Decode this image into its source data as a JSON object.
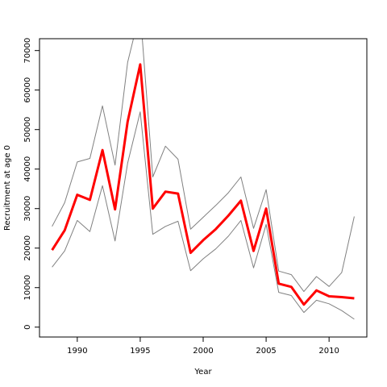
{
  "chart_data": {
    "type": "line",
    "title": "",
    "xlabel": "Year",
    "ylabel": "Recruitment at age 0",
    "xlim": [
      1987,
      2013
    ],
    "ylim": [
      -2500,
      73000
    ],
    "xticks": [
      1990,
      1995,
      2000,
      2005,
      2010
    ],
    "yticks": [
      0,
      10000,
      20000,
      30000,
      40000,
      50000,
      60000,
      70000
    ],
    "grid": false,
    "legend": "none",
    "x": [
      1988,
      1989,
      1990,
      1991,
      1992,
      1993,
      1994,
      1995,
      1996,
      1997,
      1998,
      1999,
      2000,
      2001,
      2002,
      2003,
      2004,
      2005,
      2006,
      2007,
      2008,
      2009,
      2010,
      2011,
      2012
    ],
    "series": [
      {
        "role": "estimate",
        "color": "#ff0000",
        "width": 3,
        "values": [
          19500,
          24500,
          33500,
          32200,
          44800,
          29800,
          52000,
          66500,
          30000,
          34300,
          33800,
          18800,
          22000,
          24800,
          28200,
          32000,
          19300,
          30000,
          11000,
          10200,
          5700,
          9300,
          7800,
          7600,
          7300
        ]
      },
      {
        "role": "upper bound",
        "color": "#808080",
        "width": 1,
        "values": [
          25500,
          31500,
          41800,
          42700,
          56000,
          41000,
          67000,
          80000,
          38000,
          45800,
          42500,
          24800,
          27800,
          30800,
          34000,
          38000,
          25000,
          34800,
          14200,
          13300,
          9000,
          12800,
          10300,
          13800,
          28000
        ]
      },
      {
        "role": "lower bound",
        "color": "#808080",
        "width": 1,
        "values": [
          15200,
          19300,
          27000,
          24200,
          35800,
          21800,
          41500,
          54500,
          23500,
          25500,
          26800,
          14300,
          17300,
          19800,
          23000,
          27000,
          15000,
          26000,
          8800,
          8000,
          3700,
          6800,
          5900,
          4200,
          2000
        ]
      }
    ]
  }
}
